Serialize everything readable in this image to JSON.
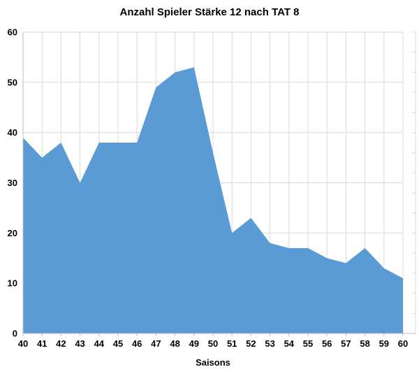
{
  "chart_data": {
    "type": "area",
    "title": "Anzahl Spieler Stärke 12 nach TAT 8",
    "xlabel": "Saisons",
    "ylabel": "",
    "x": [
      40,
      41,
      42,
      43,
      44,
      45,
      46,
      47,
      48,
      49,
      50,
      51,
      52,
      53,
      54,
      55,
      56,
      57,
      58,
      59,
      60
    ],
    "values": [
      39,
      35,
      38,
      30,
      38,
      38,
      38,
      49,
      52,
      53,
      36,
      20,
      23,
      18,
      17,
      17,
      15,
      14,
      17,
      13,
      11
    ],
    "ylim": [
      0,
      60
    ],
    "yticks": [
      0,
      10,
      20,
      30,
      40,
      50,
      60
    ],
    "grid": true,
    "legend": false,
    "area_color": "#5B9BD5",
    "gridline_color": "#D9D9D9",
    "axis_color": "#BFBFBF",
    "text_color": "#000000"
  }
}
